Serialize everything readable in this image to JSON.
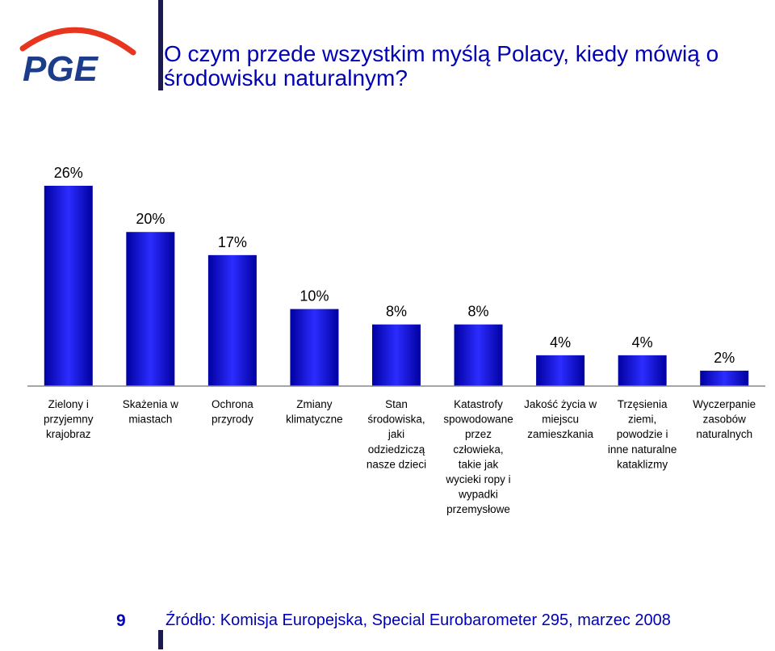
{
  "logo": {
    "text": "PGE",
    "accent_color": "#e8351f",
    "text_color": "#1c3c8c"
  },
  "title": "O czym przede wszystkim myślą Polacy, kiedy mówią o środowisku naturalnym?",
  "footer": {
    "page_number": "9",
    "source": "Źródło: Komisja Europejska, Special Eurobarometer 295, marzec 2008"
  },
  "chart_data": {
    "type": "bar",
    "categories": [
      "Zielony i przyjemny krajobraz",
      "Skażenia w miastach",
      "Ochrona przyrody",
      "Zmiany klimatyczne",
      "Stan środowiska, jaki odziedziczą nasze dzieci",
      "Katastrofy spowodowane przez człowieka, takie jak wycieki ropy i wypadki przemysłowe",
      "Jakość życia w miejscu zamieszkania",
      "Trzęsienia ziemi, powodzie i inne naturalne kataklizmy",
      "Wyczerpanie zasobów naturalnych"
    ],
    "category_lines": [
      [
        "Zielony i",
        "przyjemny",
        "krajobraz"
      ],
      [
        "Skażenia w",
        "miastach"
      ],
      [
        "Ochrona",
        "przyrody"
      ],
      [
        "Zmiany",
        "klimatyczne"
      ],
      [
        "Stan",
        "środowiska,",
        "jaki",
        "odziedziczą",
        "nasze dzieci"
      ],
      [
        "Katastrofy",
        "spowodowane",
        "przez",
        "człowieka,",
        "takie jak",
        "wycieki ropy i",
        "wypadki",
        "przemysłowe"
      ],
      [
        "Jakość życia w",
        "miejscu",
        "zamieszkania"
      ],
      [
        "Trzęsienia",
        "ziemi,",
        "powodzie i",
        "inne naturalne",
        "kataklizmy"
      ],
      [
        "Wyczerpanie",
        "zasobów",
        "naturalnych"
      ]
    ],
    "values": [
      26,
      20,
      17,
      10,
      8,
      8,
      4,
      4,
      2
    ],
    "value_labels": [
      "26%",
      "20%",
      "17%",
      "10%",
      "8%",
      "8%",
      "4%",
      "4%",
      "2%"
    ],
    "ylim": [
      0,
      26
    ],
    "bar_color": "#0a0ad2",
    "bar_color_light": "#3c3cf5",
    "grid": false,
    "legend": "none"
  }
}
